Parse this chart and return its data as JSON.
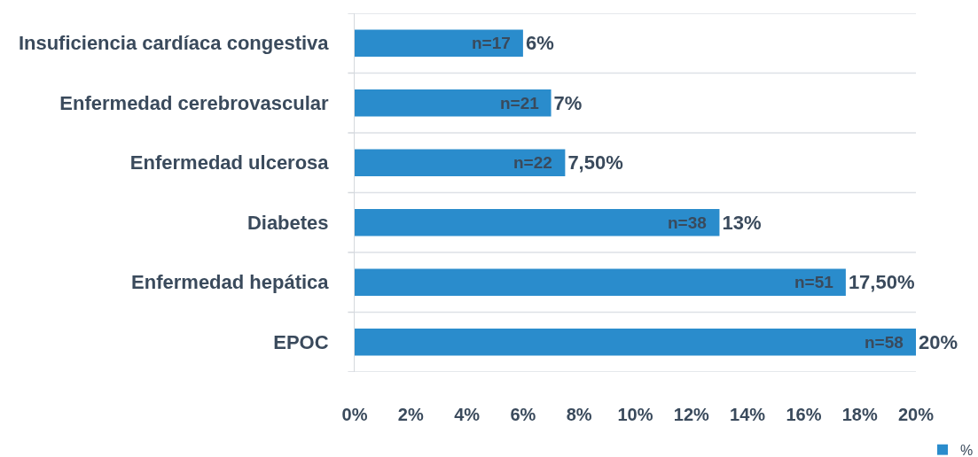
{
  "chart_data": {
    "type": "bar",
    "orientation": "horizontal",
    "categories": [
      "Insuficiencia cardíaca congestiva",
      "Enfermedad cerebrovascular",
      "Enfermedad ulcerosa",
      "Diabetes",
      "Enfermedad hepática",
      "EPOC"
    ],
    "series": [
      {
        "name": "%",
        "color": "#2a8ccc",
        "values": [
          6,
          7,
          7.5,
          13,
          17.5,
          20
        ],
        "value_labels": [
          "6%",
          "7%",
          "7,50%",
          "13%",
          "17,50%",
          "20%"
        ]
      }
    ],
    "xlim": [
      0,
      20
    ],
    "xticks": [
      {
        "value": 0,
        "label": "0%"
      },
      {
        "value": 2,
        "label": "2%"
      },
      {
        "value": 4,
        "label": "4%"
      },
      {
        "value": 6,
        "label": "6%"
      },
      {
        "value": 8,
        "label": "8%"
      },
      {
        "value": 10,
        "label": "10%"
      },
      {
        "value": 12,
        "label": "12%"
      },
      {
        "value": 14,
        "label": "14%"
      },
      {
        "value": 16,
        "label": "16%"
      },
      {
        "value": 18,
        "label": "18%"
      },
      {
        "value": 20,
        "label": "20%"
      }
    ],
    "annotations": [
      {
        "text": "n=17",
        "x": 6,
        "y": "Insuficiencia cardíaca congestiva"
      },
      {
        "text": "n=21",
        "x": 7,
        "y": "Enfermedad cerebrovascular"
      },
      {
        "text": "n=22",
        "x": 7.5,
        "y": "Enfermedad ulcerosa"
      },
      {
        "text": "n=38",
        "x": 13,
        "y": "Diabetes"
      },
      {
        "text": "n=51",
        "x": 17.5,
        "y": "Enfermedad hepática"
      },
      {
        "text": "n=58",
        "x": 20,
        "y": "EPOC"
      }
    ],
    "grid": "y",
    "legend": "bottom right"
  }
}
